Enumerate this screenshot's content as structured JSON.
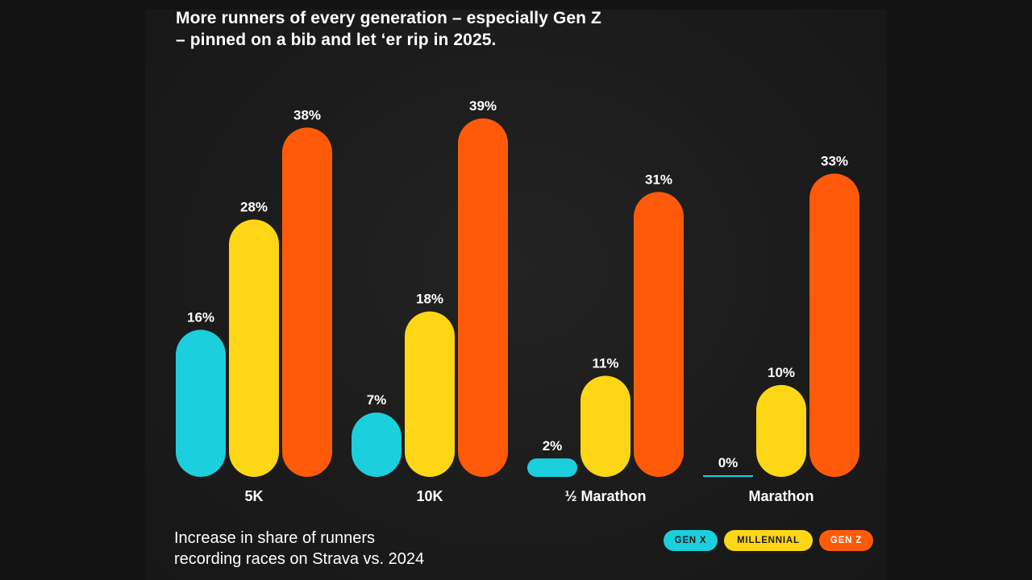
{
  "headline": {
    "line1": "More runners of every generation – especially Gen Z",
    "line2": "– pinned on a bib and let ‘er rip in 2025."
  },
  "footnote": {
    "line1": "Increase in share of runners",
    "line2": "recording races on Strava vs. 2024"
  },
  "legend": [
    {
      "label": "GEN X",
      "color": "#1ccfdc"
    },
    {
      "label": "MILLENNIAL",
      "color": "#fdd716"
    },
    {
      "label": "GEN Z",
      "color": "#ff5a0a"
    }
  ],
  "chart_data": {
    "type": "bar",
    "title": "",
    "xlabel": "",
    "ylabel": "",
    "categories": [
      "5K",
      "10K",
      "½ Marathon",
      "Marathon"
    ],
    "series": [
      {
        "name": "GEN X",
        "color": "#1ccfdc",
        "values": [
          16,
          7,
          2,
          0
        ]
      },
      {
        "name": "MILLENNIAL",
        "color": "#fdd716",
        "values": [
          28,
          18,
          11,
          10
        ]
      },
      {
        "name": "GEN Z",
        "color": "#ff5a0a",
        "values": [
          38,
          39,
          31,
          33
        ]
      }
    ],
    "value_suffix": "%",
    "ylim": [
      0,
      39
    ],
    "grid": false,
    "legend_position": "bottom-right"
  }
}
